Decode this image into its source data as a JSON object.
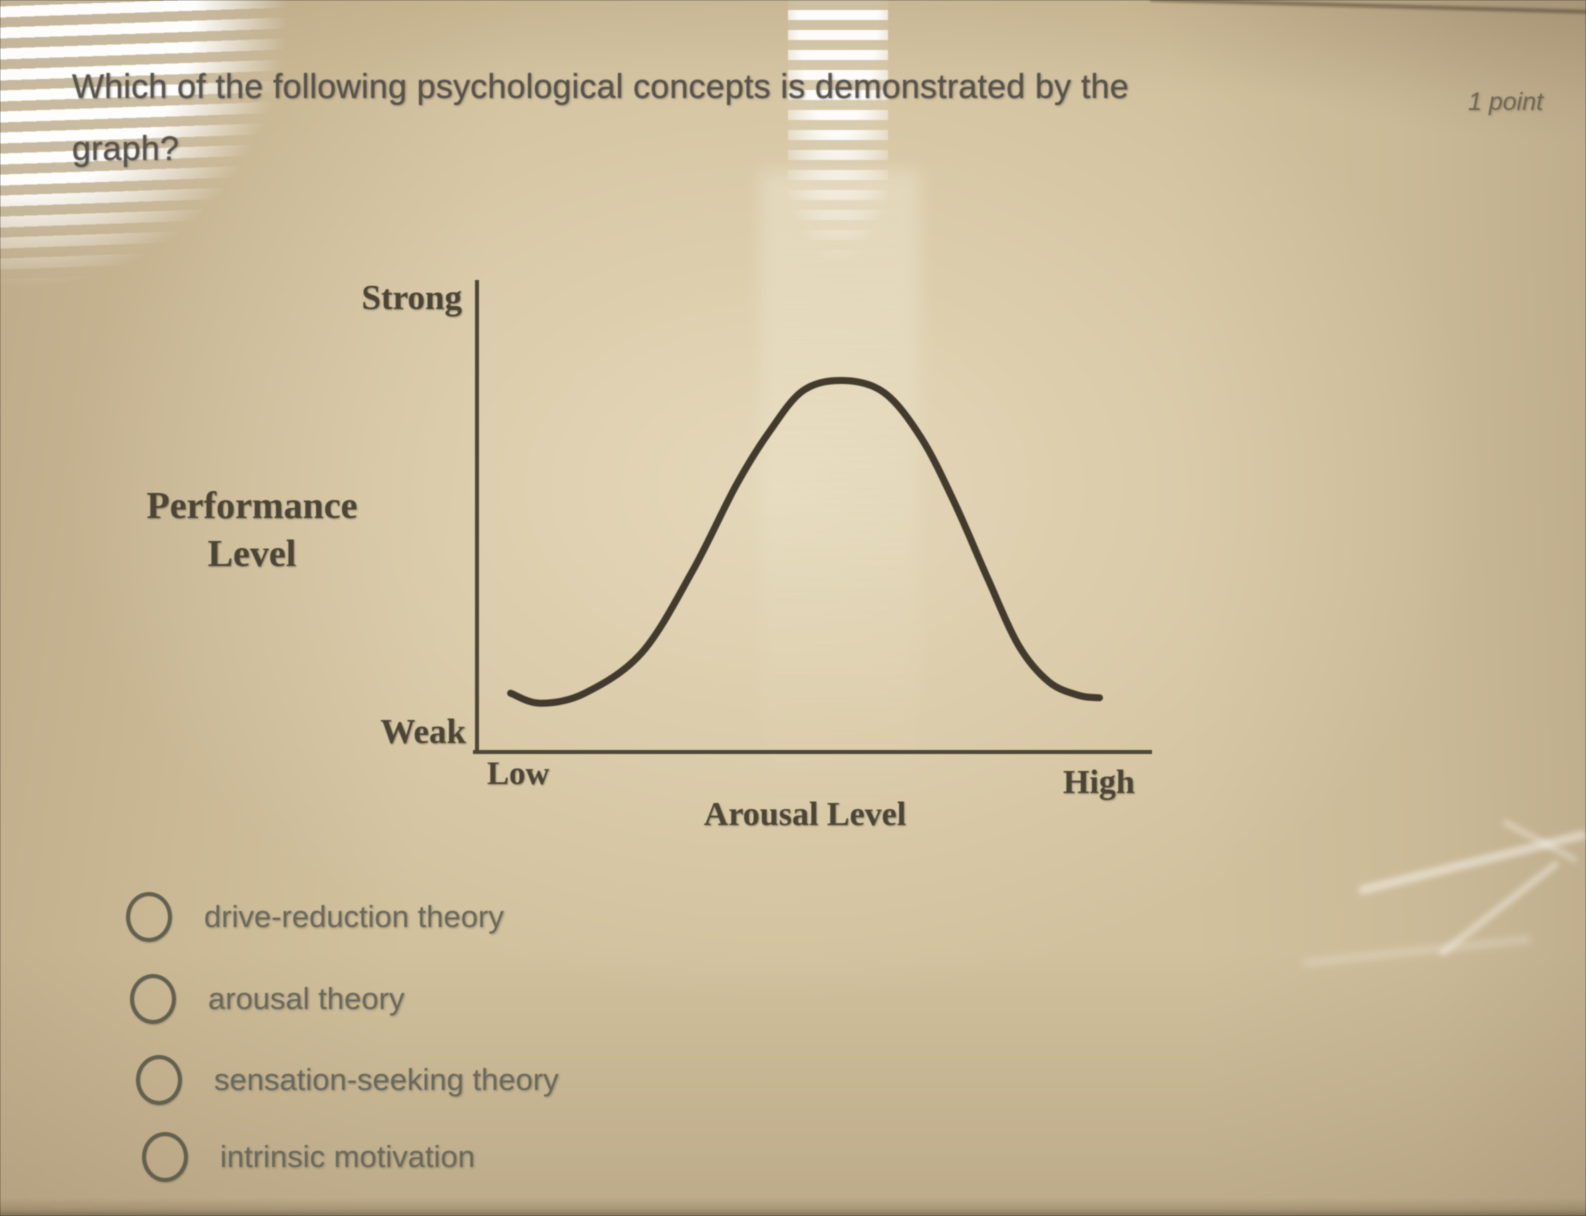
{
  "question": {
    "line1": "Which of the following psychological concepts is demonstrated by the",
    "line2": "graph?",
    "full_text": "Which of the following psychological concepts is demonstrated by the graph?",
    "points_label": "1 point"
  },
  "chart_labels": {
    "y_top": "Strong",
    "y_bottom": "Weak",
    "y_title_line1": "Performance",
    "y_title_line2": "Level",
    "x_left": "Low",
    "x_right": "High",
    "x_title": "Arousal Level"
  },
  "chart_data": {
    "type": "line",
    "title": "",
    "xlabel": "Arousal Level",
    "ylabel": "Performance Level",
    "x_tick_labels": [
      "Low",
      "High"
    ],
    "y_tick_labels": [
      "Weak",
      "Strong"
    ],
    "x_range": [
      0,
      10
    ],
    "y_range": [
      0,
      10
    ],
    "grid": false,
    "legend": false,
    "description": "Inverted-U (Yerkes-Dodson style) curve: performance is weak at low arousal, peaks at moderate arousal, and declines back to weak at high arousal.",
    "points": [
      [
        0.5,
        1.3
      ],
      [
        0.94,
        1.08
      ],
      [
        1.6,
        1.3
      ],
      [
        2.45,
        2.2
      ],
      [
        3.2,
        4.0
      ],
      [
        3.85,
        5.9
      ],
      [
        4.35,
        7.1
      ],
      [
        4.85,
        8.0
      ],
      [
        5.44,
        8.22
      ],
      [
        6.05,
        7.95
      ],
      [
        6.6,
        6.95
      ],
      [
        7.1,
        5.5
      ],
      [
        7.6,
        3.8
      ],
      [
        8.05,
        2.35
      ],
      [
        8.5,
        1.55
      ],
      [
        8.95,
        1.25
      ],
      [
        9.25,
        1.2
      ]
    ]
  },
  "options": [
    {
      "label": "drive-reduction theory",
      "selected": false
    },
    {
      "label": "arousal theory",
      "selected": false
    },
    {
      "label": "sensation-seeking theory",
      "selected": false
    },
    {
      "label": "intrinsic motivation",
      "selected": false
    }
  ],
  "colors": {
    "background_tan": "#d2c19d",
    "question_text": "#57524a",
    "points_text": "#6f6756",
    "figure_text": "#4c4536",
    "axis_and_curve": "#433c2e",
    "option_text": "#6a685a",
    "radio_ring": "#62604f",
    "glare_white": "#ffffff"
  }
}
